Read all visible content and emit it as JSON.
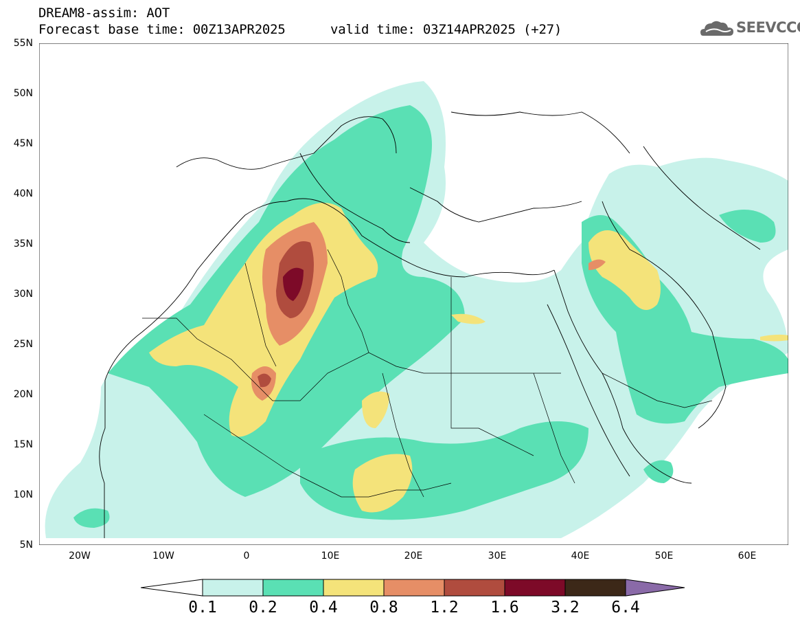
{
  "header": {
    "title_line1": "DREAM8-assim: AOT",
    "title_line2": "Forecast base time: 00Z13APR2025",
    "valid_time": "valid time: 03Z14APR2025 (+27)",
    "logo_text": "SEEVCCC"
  },
  "map": {
    "lat_labels": [
      "55N",
      "50N",
      "45N",
      "40N",
      "35N",
      "30N",
      "25N",
      "20N",
      "15N",
      "10N",
      "5N"
    ],
    "lon_labels": [
      "20W",
      "10W",
      "0",
      "10E",
      "20E",
      "30E",
      "40E",
      "50E",
      "60E"
    ],
    "colors": {
      "c1": "#c8f2ea",
      "c2": "#5ae0b4",
      "c3": "#f4e37a",
      "c4": "#e68e66",
      "c5": "#b04c3e",
      "c6": "#7d0a28",
      "c7": "#3c2818",
      "c8": "#8a6aa8"
    }
  },
  "colorbar": {
    "labels": [
      "0.1",
      "0.2",
      "0.4",
      "0.8",
      "1.2",
      "1.6",
      "3.2",
      "6.4"
    ]
  }
}
